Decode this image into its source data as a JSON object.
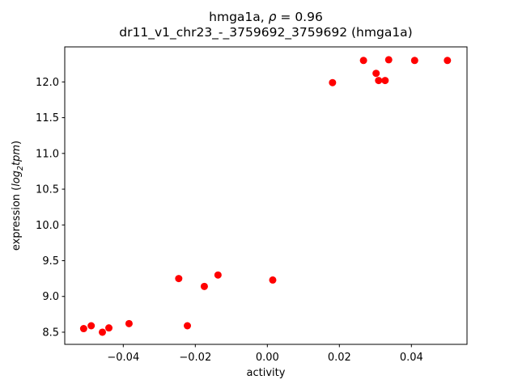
{
  "chart_data": {
    "type": "scatter",
    "title": "hmga1a, ρ = 0.96",
    "title_parts": {
      "prefix": "hmga1a, ",
      "rho": "ρ",
      "suffix": " = 0.96"
    },
    "subtitle": "dr11_v1_chr23_-_3759692_3759692 (hmga1a)",
    "rho": 0.96,
    "xlabel": "activity",
    "ylabel": "expression (log₂tpm)",
    "ylabel_parts": {
      "prefix": "expression (",
      "log": "log",
      "sub": "2",
      "var": "tpm",
      "close": ")"
    },
    "marker_color": "#ff0000",
    "axis_color": "#000000",
    "text_color": "#000000",
    "background_color": "#ffffff",
    "grid": false,
    "legend": "none",
    "xlim": [
      -0.05625,
      0.05544
    ],
    "ylim": [
      8.33,
      12.49
    ],
    "xticks": [
      -0.04,
      -0.02,
      0.0,
      0.02,
      0.04
    ],
    "xtick_labels": [
      "−0.04",
      "−0.02",
      "0.00",
      "0.02",
      "0.04"
    ],
    "yticks": [
      8.5,
      9.0,
      9.5,
      10.0,
      10.5,
      11.0,
      11.5,
      12.0
    ],
    "ytick_labels": [
      "8.5",
      "9.0",
      "9.5",
      "10.0",
      "10.5",
      "11.0",
      "11.5",
      "12.0"
    ],
    "points": [
      [
        -0.051,
        8.55
      ],
      [
        -0.0489,
        8.59
      ],
      [
        -0.0458,
        8.5
      ],
      [
        -0.044,
        8.56
      ],
      [
        -0.0384,
        8.62
      ],
      [
        -0.0246,
        9.25
      ],
      [
        -0.0222,
        8.59
      ],
      [
        -0.0175,
        9.14
      ],
      [
        -0.0137,
        9.3
      ],
      [
        0.0015,
        9.23
      ],
      [
        0.0181,
        11.99
      ],
      [
        0.0267,
        12.3
      ],
      [
        0.0302,
        12.12
      ],
      [
        0.0309,
        12.02
      ],
      [
        0.0327,
        12.02
      ],
      [
        0.0337,
        12.31
      ],
      [
        0.0409,
        12.3
      ],
      [
        0.05,
        12.3
      ]
    ]
  }
}
